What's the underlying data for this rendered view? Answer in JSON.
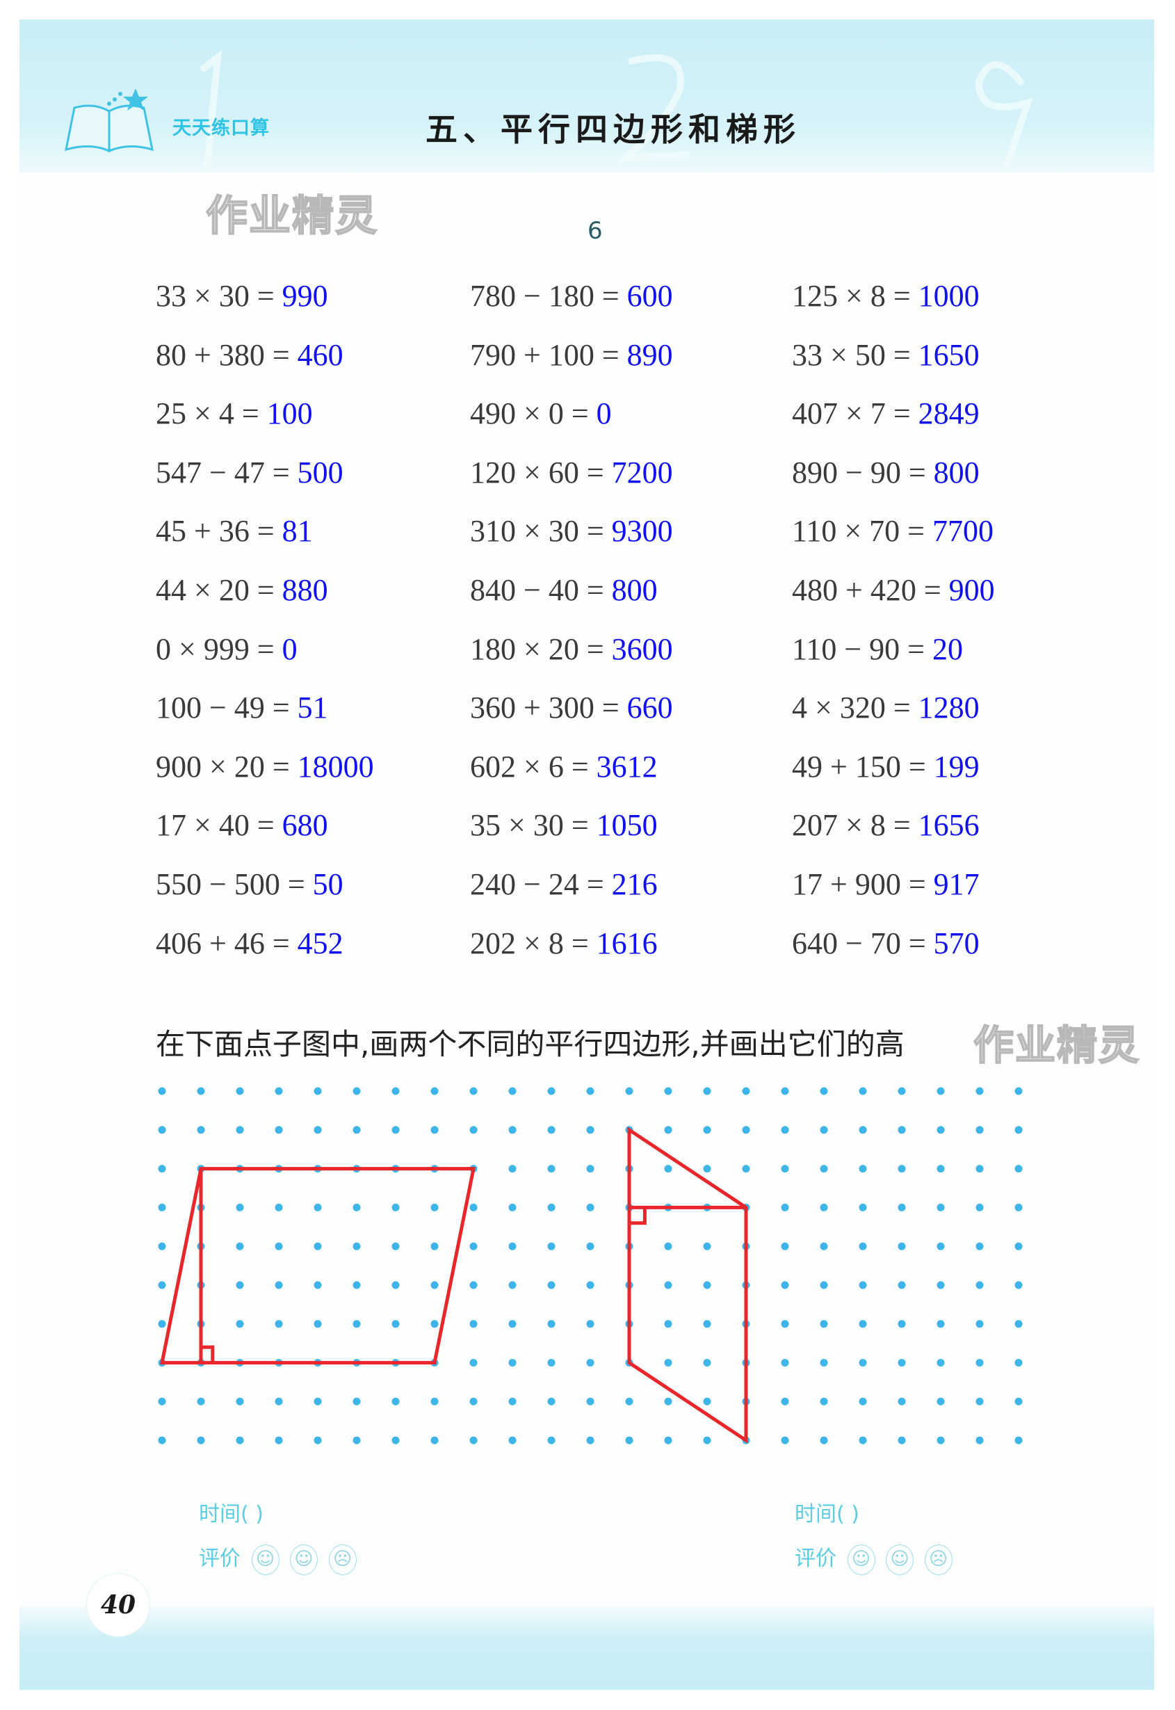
{
  "header": {
    "logo_text": "天天练口算",
    "title": "五、平行四边形和梯形"
  },
  "watermark": "作业精灵",
  "set_number": "6",
  "equations": [
    [
      {
        "q": "33 × 30 =",
        "a": "990"
      },
      {
        "q": "780 − 180 =",
        "a": "600"
      },
      {
        "q": "125 × 8 =",
        "a": "1000"
      }
    ],
    [
      {
        "q": "80 + 380 =",
        "a": "460"
      },
      {
        "q": "790 + 100 =",
        "a": "890"
      },
      {
        "q": "33 × 50 =",
        "a": "1650"
      }
    ],
    [
      {
        "q": "25 × 4 =",
        "a": "100"
      },
      {
        "q": "490 × 0 =",
        "a": "0"
      },
      {
        "q": "407 × 7 =",
        "a": "2849"
      }
    ],
    [
      {
        "q": "547 − 47 =",
        "a": "500"
      },
      {
        "q": "120 × 60 =",
        "a": "7200"
      },
      {
        "q": "890 − 90 =",
        "a": "800"
      }
    ],
    [
      {
        "q": "45 + 36 =",
        "a": "81"
      },
      {
        "q": "310 × 30 =",
        "a": "9300"
      },
      {
        "q": "110 × 70 =",
        "a": "7700"
      }
    ],
    [
      {
        "q": "44 × 20 =",
        "a": "880"
      },
      {
        "q": "840 − 40 =",
        "a": "800"
      },
      {
        "q": "480 + 420 =",
        "a": "900"
      }
    ],
    [
      {
        "q": "0 × 999 =",
        "a": "0"
      },
      {
        "q": "180 × 20 =",
        "a": "3600"
      },
      {
        "q": "110 − 90 =",
        "a": "20"
      }
    ],
    [
      {
        "q": "100 − 49 =",
        "a": "51"
      },
      {
        "q": "360 + 300 =",
        "a": "660"
      },
      {
        "q": "4 × 320 =",
        "a": "1280"
      }
    ],
    [
      {
        "q": "900 × 20 =",
        "a": "18000"
      },
      {
        "q": "602 × 6 =",
        "a": "3612"
      },
      {
        "q": "49 + 150 =",
        "a": "199"
      }
    ],
    [
      {
        "q": "17 × 40 =",
        "a": "680"
      },
      {
        "q": "35 × 30 =",
        "a": "1050"
      },
      {
        "q": "207 × 8 =",
        "a": "1656"
      }
    ],
    [
      {
        "q": "550 − 500 =",
        "a": "50"
      },
      {
        "q": "240 − 24 =",
        "a": "216"
      },
      {
        "q": "17 + 900 =",
        "a": "917"
      }
    ],
    [
      {
        "q": "406 + 46 =",
        "a": "452"
      },
      {
        "q": "202 × 8 =",
        "a": "1616"
      },
      {
        "q": "640 − 70 =",
        "a": "570"
      }
    ]
  ],
  "instruction": "在下面点子图中,画两个不同的平行四边形,并画出它们的高",
  "colors": {
    "answer": "#1010f0",
    "dot": "#3db4ea",
    "drawing": "#e8262b",
    "accent": "#5ccbe4"
  },
  "footer": {
    "time_label": "时间(        )",
    "rating_label": "评价",
    "faces": [
      "☺",
      "☺",
      "☹"
    ],
    "page_number": "40"
  }
}
